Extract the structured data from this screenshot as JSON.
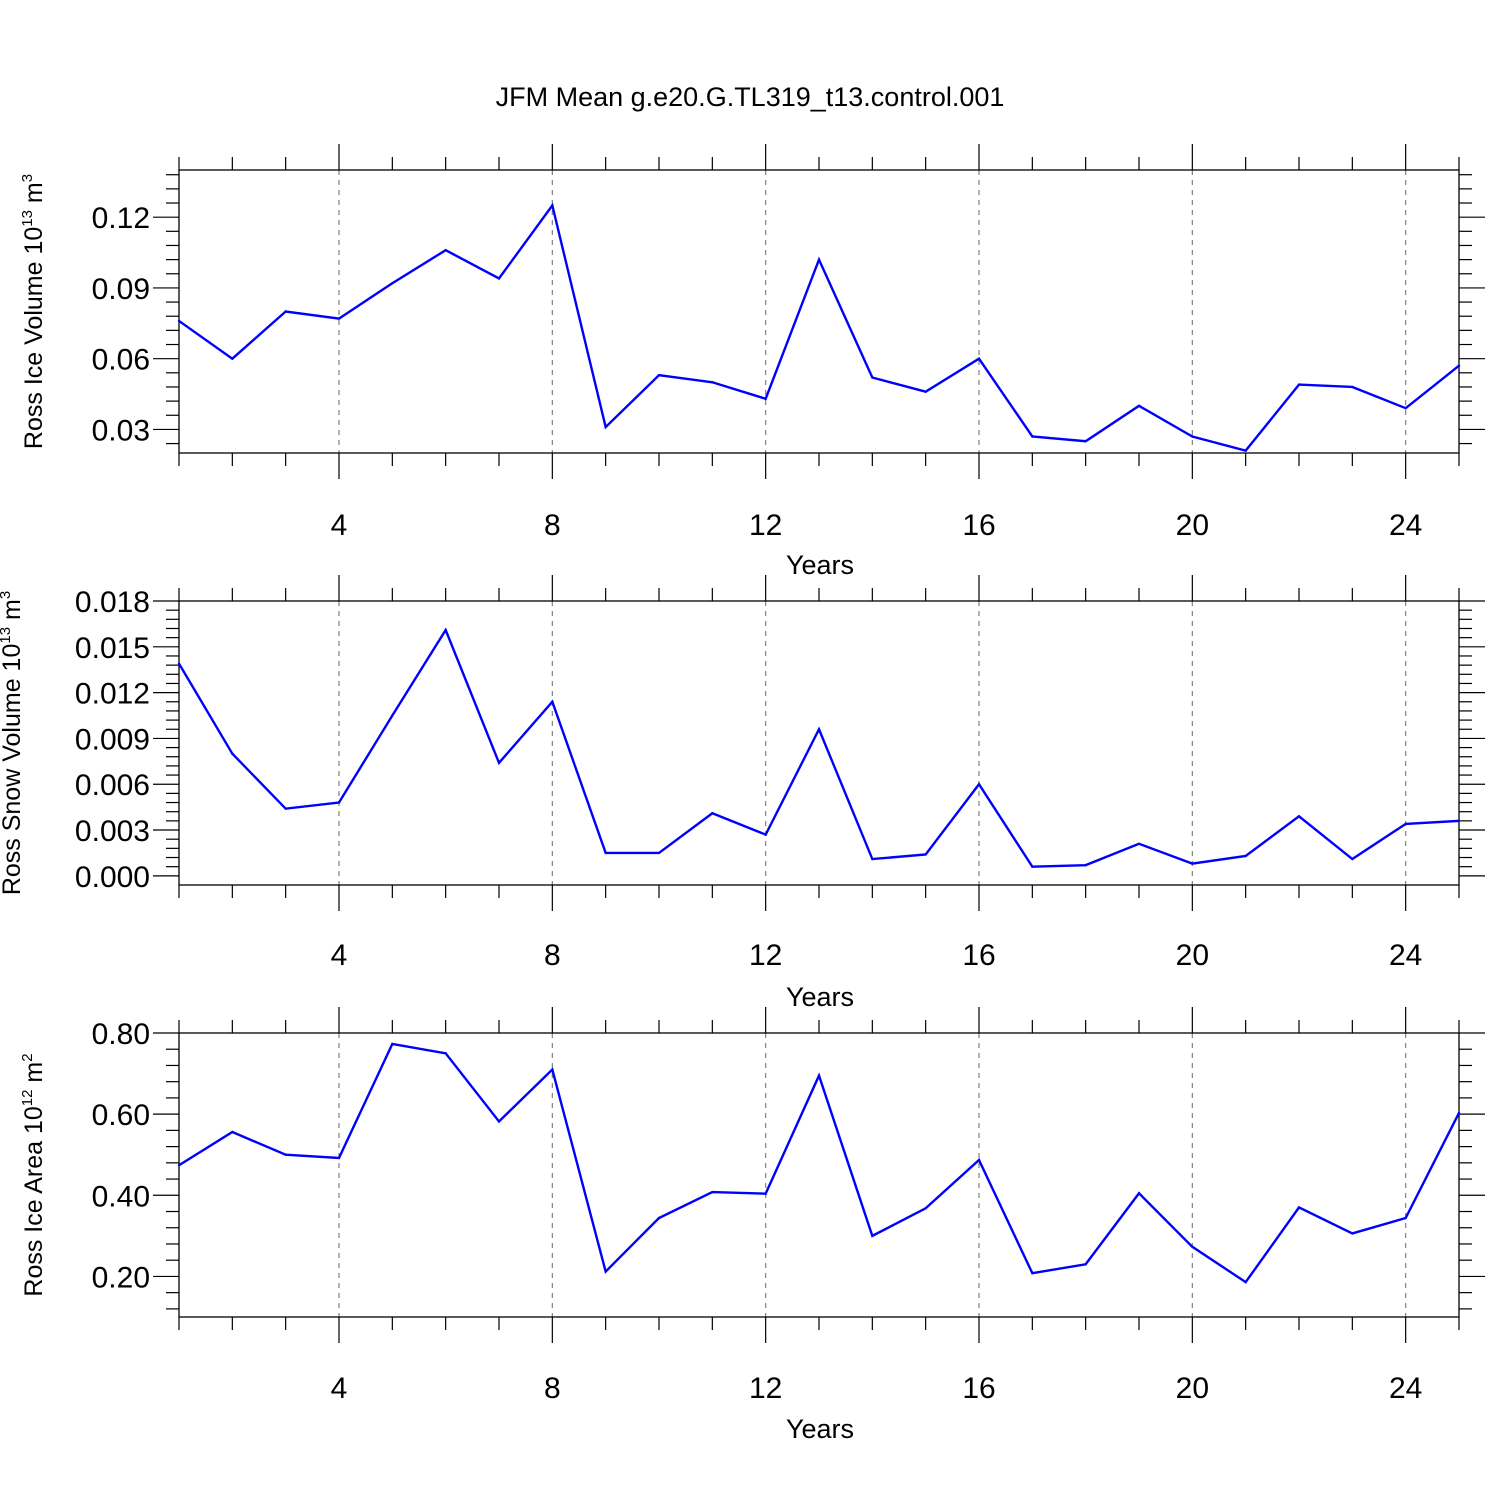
{
  "title": "JFM Mean g.e20.G.TL319_t13.control.001",
  "colors": {
    "line": "#0000ff",
    "axis": "#000000",
    "grid": "#808080"
  },
  "chart_data": [
    {
      "type": "line",
      "ylabel_parts": [
        "Ross Ice Volume 10",
        "13",
        " m",
        "3"
      ],
      "xlabel": "Years",
      "xlim": [
        1,
        25
      ],
      "ylim": [
        0.02,
        0.14
      ],
      "xticks": [
        4,
        8,
        12,
        16,
        20,
        24
      ],
      "xtick_labels": [
        "4",
        "8",
        "12",
        "16",
        "20",
        "24"
      ],
      "yticks": [
        0.03,
        0.06,
        0.09,
        0.12
      ],
      "ytick_labels": [
        "0.03",
        "0.06",
        "0.09",
        "0.12"
      ],
      "grid": "vertical dashed at major x ticks",
      "series": [
        {
          "x": [
            1,
            2,
            3,
            4,
            5,
            6,
            7,
            8,
            9,
            10,
            11,
            12,
            13,
            14,
            15,
            16,
            17,
            18,
            19,
            20,
            21,
            22,
            23,
            24,
            25
          ],
          "values": [
            0.076,
            0.06,
            0.08,
            0.077,
            0.092,
            0.106,
            0.094,
            0.125,
            0.031,
            0.053,
            0.05,
            0.043,
            0.102,
            0.052,
            0.046,
            0.06,
            0.027,
            0.025,
            0.04,
            0.027,
            0.021,
            0.049,
            0.048,
            0.039,
            0.057
          ]
        }
      ]
    },
    {
      "type": "line",
      "ylabel_parts": [
        "Ross Snow Volume 10",
        "13",
        " m",
        "3"
      ],
      "xlabel": "Years",
      "xlim": [
        1,
        25
      ],
      "ylim": [
        -0.0006,
        0.018
      ],
      "xticks": [
        4,
        8,
        12,
        16,
        20,
        24
      ],
      "xtick_labels": [
        "4",
        "8",
        "12",
        "16",
        "20",
        "24"
      ],
      "yticks": [
        0.0,
        0.003,
        0.006,
        0.009,
        0.012,
        0.015,
        0.018
      ],
      "ytick_labels": [
        "0.000",
        "0.003",
        "0.006",
        "0.009",
        "0.012",
        "0.015",
        "0.018"
      ],
      "grid": "vertical dashed at major x ticks",
      "series": [
        {
          "x": [
            1,
            2,
            3,
            4,
            5,
            6,
            7,
            8,
            9,
            10,
            11,
            12,
            13,
            14,
            15,
            16,
            17,
            18,
            19,
            20,
            21,
            22,
            23,
            24,
            25
          ],
          "values": [
            0.0139,
            0.008,
            0.0044,
            0.0048,
            0.0105,
            0.0161,
            0.0074,
            0.0114,
            0.0015,
            0.0015,
            0.0041,
            0.0027,
            0.0096,
            0.0011,
            0.0014,
            0.006,
            0.0006,
            0.0007,
            0.0021,
            0.0008,
            0.0013,
            0.0039,
            0.0011,
            0.0034,
            0.0036
          ]
        }
      ]
    },
    {
      "type": "line",
      "ylabel_parts": [
        "Ross Ice Area 10",
        "12",
        " m",
        "2"
      ],
      "xlabel": "Years",
      "xlim": [
        1,
        25
      ],
      "ylim": [
        0.1,
        0.8
      ],
      "xticks": [
        4,
        8,
        12,
        16,
        20,
        24
      ],
      "xtick_labels": [
        "4",
        "8",
        "12",
        "16",
        "20",
        "24"
      ],
      "yticks": [
        0.2,
        0.4,
        0.6,
        0.8
      ],
      "ytick_labels": [
        "0.20",
        "0.40",
        "0.60",
        "0.80"
      ],
      "grid": "vertical dashed at major x ticks",
      "series": [
        {
          "x": [
            1,
            2,
            3,
            4,
            5,
            6,
            7,
            8,
            9,
            10,
            11,
            12,
            13,
            14,
            15,
            16,
            17,
            18,
            19,
            20,
            21,
            22,
            23,
            24,
            25
          ],
          "values": [
            0.474,
            0.556,
            0.5,
            0.492,
            0.773,
            0.75,
            0.582,
            0.71,
            0.212,
            0.344,
            0.408,
            0.404,
            0.695,
            0.3,
            0.368,
            0.487,
            0.208,
            0.23,
            0.405,
            0.273,
            0.186,
            0.37,
            0.306,
            0.344,
            0.603
          ]
        }
      ]
    }
  ]
}
